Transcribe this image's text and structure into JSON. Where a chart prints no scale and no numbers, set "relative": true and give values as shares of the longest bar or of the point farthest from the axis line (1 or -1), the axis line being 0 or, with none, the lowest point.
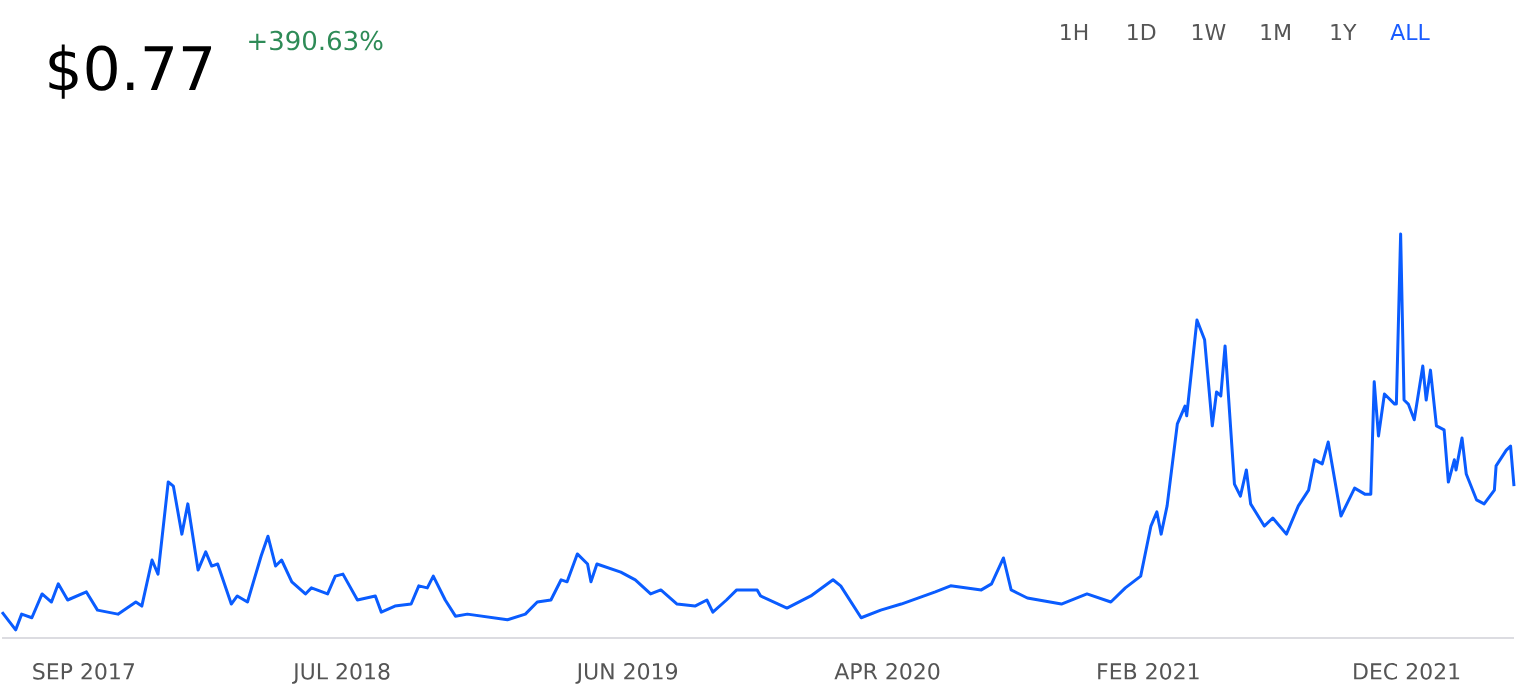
{
  "chart_data": {
    "type": "line",
    "title": "$0.77",
    "subtitle": "+390.63%",
    "annotations": [
      "1H",
      "1D",
      "1W",
      "1M",
      "1Y",
      "ALL"
    ],
    "relative": true,
    "x": [
      "2017-05-28",
      "2017-06-13",
      "2017-06-20",
      "2017-07-02",
      "2017-07-14",
      "2017-07-25",
      "2017-08-02",
      "2017-08-13",
      "2017-09-04",
      "2017-09-17",
      "2017-10-11",
      "2017-11-01",
      "2017-11-08",
      "2017-11-20",
      "2017-11-27",
      "2017-12-09",
      "2017-12-15",
      "2017-12-25",
      "2018-01-01",
      "2018-01-13",
      "2018-01-22",
      "2018-01-29",
      "2018-02-05",
      "2018-02-21",
      "2018-02-28",
      "2018-03-12",
      "2018-03-28",
      "2018-04-05",
      "2018-04-14",
      "2018-04-21",
      "2018-05-03",
      "2018-05-19",
      "2018-05-26",
      "2018-06-14",
      "2018-06-23",
      "2018-07-02",
      "2018-07-19",
      "2018-08-09",
      "2018-08-16",
      "2018-09-01",
      "2018-09-20",
      "2018-09-29",
      "2018-10-09",
      "2018-10-16",
      "2018-10-30",
      "2018-11-11",
      "2018-11-25",
      "2019-01-11",
      "2019-02-01",
      "2019-02-15",
      "2019-03-03",
      "2019-03-15",
      "2019-03-22",
      "2019-04-03",
      "2019-04-15",
      "2019-04-19",
      "2019-04-26",
      "2019-05-24",
      "2019-06-10",
      "2019-06-28",
      "2019-07-10",
      "2019-07-29",
      "2019-08-19",
      "2019-09-02",
      "2019-09-09",
      "2019-09-25",
      "2019-10-07",
      "2019-10-31",
      "2019-11-04",
      "2019-12-05",
      "2020-01-02",
      "2020-01-28",
      "2020-02-06",
      "2020-03-01",
      "2020-03-24",
      "2020-04-17",
      "2020-05-27",
      "2020-06-14",
      "2020-07-20",
      "2020-08-01",
      "2020-08-15",
      "2020-08-24",
      "2020-09-12",
      "2020-10-22",
      "2020-11-21",
      "2020-12-19",
      "2021-01-05",
      "2021-01-23",
      "2021-02-04",
      "2021-02-11",
      "2021-02-16",
      "2021-02-23",
      "2021-03-07",
      "2021-03-16",
      "2021-03-18",
      "2021-03-30",
      "2021-04-08",
      "2021-04-17",
      "2021-04-22",
      "2021-04-27",
      "2021-05-02",
      "2021-05-13",
      "2021-05-20",
      "2021-05-27",
      "2021-06-01",
      "2021-06-17",
      "2021-06-27",
      "2021-07-13",
      "2021-07-27",
      "2021-08-08",
      "2021-08-15",
      "2021-08-24",
      "2021-08-31",
      "2021-09-15",
      "2021-10-01",
      "2021-10-13",
      "2021-10-20",
      "2021-10-24",
      "2021-10-29",
      "2021-11-05",
      "2021-11-17",
      "2021-11-19",
      "2021-11-24",
      "2021-11-28",
      "2021-12-03",
      "2021-12-10",
      "2021-12-20",
      "2021-12-24",
      "2021-12-29",
      "2022-01-05",
      "2022-01-14",
      "2022-01-19",
      "2022-01-26",
      "2022-01-28",
      "2022-02-04",
      "2022-02-09",
      "2022-02-21",
      "2022-03-02",
      "2022-03-14",
      "2022-03-16",
      "2022-03-28",
      "2022-04-02",
      "2022-04-06"
    ],
    "series": [
      {
        "color": "#0a5cff",
        "values": [
          0.064,
          0.02,
          0.059,
          0.05,
          0.109,
          0.089,
          0.134,
          0.094,
          0.114,
          0.069,
          0.059,
          0.089,
          0.079,
          0.193,
          0.158,
          0.386,
          0.376,
          0.257,
          0.332,
          0.168,
          0.213,
          0.178,
          0.183,
          0.084,
          0.104,
          0.089,
          0.203,
          0.252,
          0.178,
          0.193,
          0.139,
          0.109,
          0.124,
          0.109,
          0.153,
          0.158,
          0.094,
          0.104,
          0.064,
          0.079,
          0.084,
          0.129,
          0.124,
          0.153,
          0.094,
          0.054,
          0.059,
          0.045,
          0.059,
          0.089,
          0.094,
          0.144,
          0.139,
          0.208,
          0.183,
          0.139,
          0.183,
          0.163,
          0.144,
          0.109,
          0.119,
          0.084,
          0.079,
          0.094,
          0.064,
          0.094,
          0.119,
          0.119,
          0.104,
          0.074,
          0.104,
          0.144,
          0.129,
          0.05,
          0.069,
          0.084,
          0.114,
          0.129,
          0.119,
          0.134,
          0.198,
          0.119,
          0.099,
          0.084,
          0.109,
          0.089,
          0.124,
          0.153,
          0.277,
          0.312,
          0.257,
          0.327,
          0.53,
          0.574,
          0.55,
          0.787,
          0.738,
          0.525,
          0.609,
          0.599,
          0.723,
          0.381,
          0.351,
          0.416,
          0.332,
          0.277,
          0.297,
          0.257,
          0.327,
          0.366,
          0.441,
          0.431,
          0.485,
          0.302,
          0.371,
          0.356,
          0.356,
          0.634,
          0.5,
          0.604,
          0.579,
          0.579,
          1.0,
          0.589,
          0.579,
          0.54,
          0.673,
          0.589,
          0.663,
          0.525,
          0.515,
          0.386,
          0.441,
          0.416,
          0.495,
          0.406,
          0.342,
          0.332,
          0.366,
          0.426,
          0.465,
          0.475,
          0.376
        ]
      }
    ],
    "xlim": [
      "2017-05-28",
      "2022-04-06"
    ],
    "xticks": [
      {
        "value": "2017-09-01",
        "label": "SEP 2017"
      },
      {
        "value": "2018-07-01",
        "label": "JUL 2018"
      },
      {
        "value": "2019-06-01",
        "label": "JUN 2019"
      },
      {
        "value": "2020-04-01",
        "label": "APR 2020"
      },
      {
        "value": "2021-02-01",
        "label": "FEB 2021"
      },
      {
        "value": "2021-12-01",
        "label": "DEC 2021"
      }
    ],
    "marker": "none",
    "line_style": "solid"
  }
}
